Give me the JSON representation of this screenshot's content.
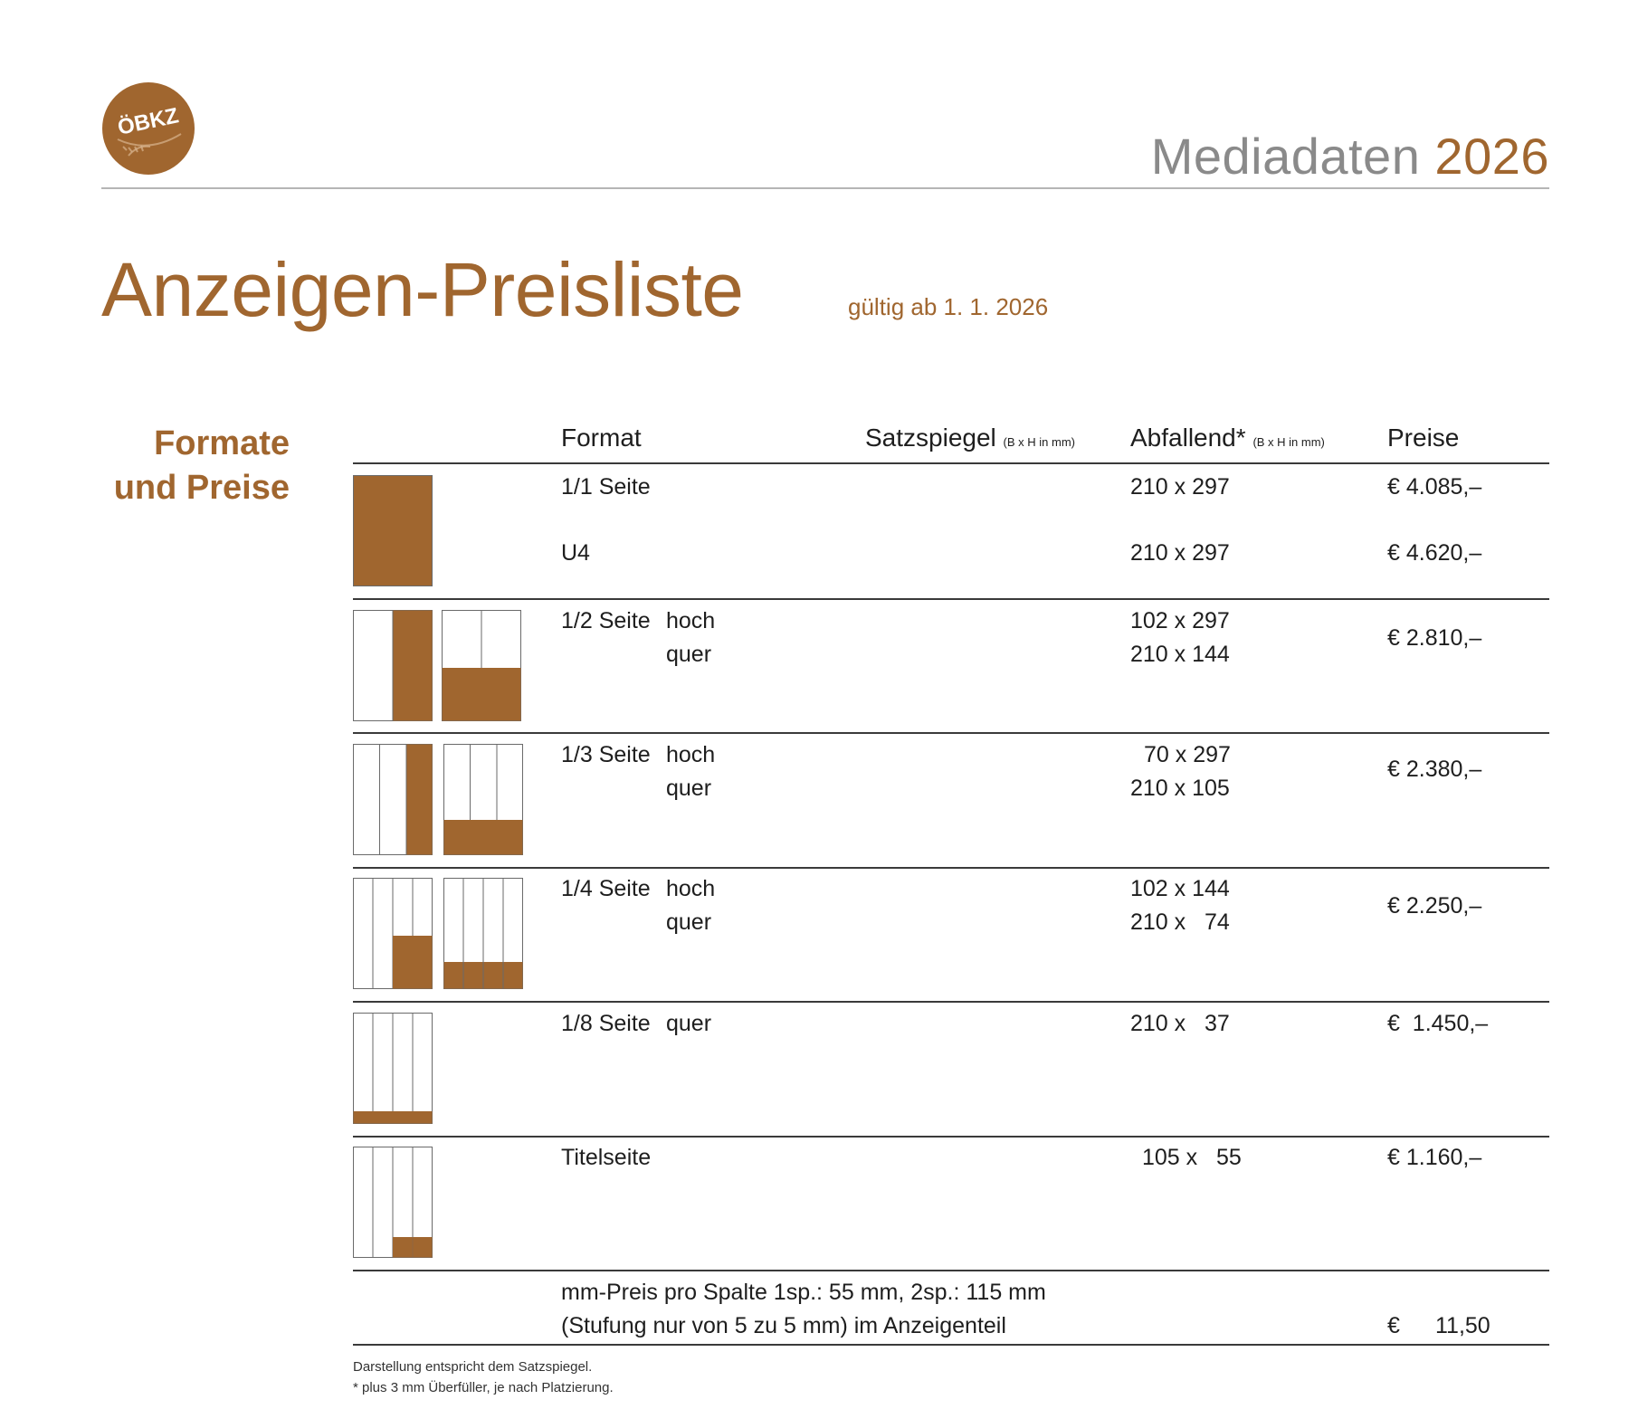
{
  "header": {
    "logo_text": "ÖBKZ",
    "brand": "Mediadaten",
    "year": "2026"
  },
  "title": "Anzeigen-Preisliste",
  "valid_from": "gültig ab 1. 1. 2026",
  "section": {
    "line1": "Formate",
    "line2": "und Preise"
  },
  "columns": {
    "format": "Format",
    "satzspiegel": "Satzspiegel",
    "satzspiegel_unit": "(B x H in mm)",
    "abfallend": "Abfallend*",
    "abfallend_unit": "(B x H in mm)",
    "preise": "Preise"
  },
  "rows": [
    {
      "format": "1/1 Seite",
      "abfallend": "210 x 297",
      "price": "€ 4.085,–"
    },
    {
      "format": "U4",
      "abfallend": "210 x 297",
      "price": "€ 4.620,–"
    },
    {
      "format": "1/2 Seite",
      "orient1": "hoch",
      "orient2": "quer",
      "abfallend1": "102 x 297",
      "abfallend2": "210 x 144",
      "price": "€ 2.810,–"
    },
    {
      "format": "1/3 Seite",
      "orient1": "hoch",
      "orient2": "quer",
      "abfallend1": "70 x 297",
      "abfallend2": "210 x 105",
      "price": "€ 2.380,–"
    },
    {
      "format": "1/4 Seite",
      "orient1": "hoch",
      "orient2": "quer",
      "abfallend1": "102 x 144",
      "abfallend2": "210 x   74",
      "price": "€ 2.250,–"
    },
    {
      "format": "1/8 Seite",
      "orient1": "quer",
      "abfallend1": "210 x   37",
      "price": "€  1.450,–"
    },
    {
      "format": "Titelseite",
      "abfallend1": "105 x   55",
      "price": "€ 1.160,–"
    }
  ],
  "mm_price": {
    "line1": "mm-Preis pro Spalte 1sp.: 55 mm, 2sp.: 115 mm",
    "line2": "(Stufung nur von 5 zu 5 mm) im Anzeigenteil",
    "currency": "€",
    "value": "11,50"
  },
  "footnotes": {
    "line1": "Darstellung entspricht dem Satzspiegel.",
    "line2": "* plus 3 mm Überfüller, je nach Platzierung."
  },
  "colors": {
    "accent": "#a0662f",
    "gray": "#8a8a8a",
    "rule": "#3a3a3a"
  },
  "icons": {
    "logo": "oebkz-logo"
  }
}
